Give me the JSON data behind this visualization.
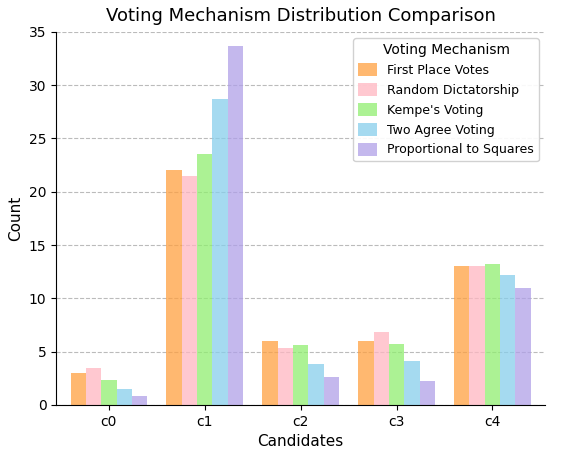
{
  "title": "Voting Mechanism Distribution Comparison",
  "xlabel": "Candidates",
  "ylabel": "Count",
  "categories": [
    "c0",
    "c1",
    "c2",
    "c3",
    "c4"
  ],
  "mechanisms": [
    "First Place Votes",
    "Random Dictatorship",
    "Kempe's Voting",
    "Two Agree Voting",
    "Proportional to Squares"
  ],
  "colors": [
    "#FFA040",
    "#FFB6C1",
    "#90EE70",
    "#87CEEB",
    "#B0A0E8"
  ],
  "values": {
    "First Place Votes": [
      3,
      22,
      6,
      6,
      13
    ],
    "Random Dictatorship": [
      3.5,
      21.5,
      5.3,
      6.8,
      13
    ],
    "Kempe's Voting": [
      2.3,
      23.5,
      5.6,
      5.7,
      13.2
    ],
    "Two Agree Voting": [
      1.5,
      28.7,
      3.8,
      4.1,
      12.2
    ],
    "Proportional to Squares": [
      0.8,
      33.7,
      2.6,
      2.2,
      11.0
    ]
  },
  "ylim": [
    0,
    35
  ],
  "yticks": [
    0,
    5,
    10,
    15,
    20,
    25,
    30,
    35
  ],
  "legend_title": "Voting Mechanism",
  "background_color": "#ffffff"
}
